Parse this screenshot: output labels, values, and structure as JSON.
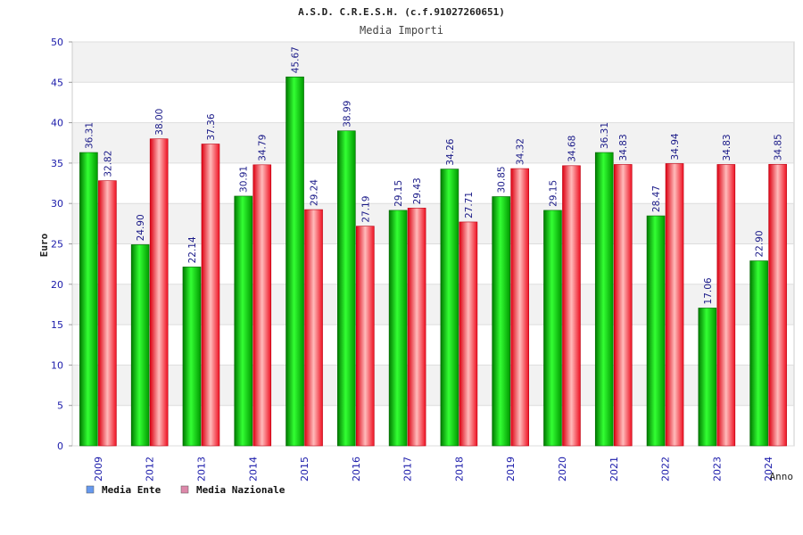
{
  "chart_data": {
    "type": "bar",
    "title": "A.S.D. C.R.E.S.H. (c.f.91027260651)",
    "subtitle": "Media Importi",
    "xlabel": "Anno",
    "ylabel": "Euro",
    "ylim": [
      0,
      50
    ],
    "yticks": [
      "0",
      "5",
      "10",
      "15",
      "20",
      "25",
      "30",
      "35",
      "40",
      "45",
      "50"
    ],
    "grid": true,
    "legend_position": "bottom-left",
    "categories": [
      "2009",
      "2012",
      "2013",
      "2014",
      "2015",
      "2016",
      "2017",
      "2018",
      "2019",
      "2020",
      "2021",
      "2022",
      "2023",
      "2024"
    ],
    "series": [
      {
        "name": "Media Ente",
        "color": "#00aa00",
        "legend_color": "#6699ee",
        "values": [
          36.31,
          24.9,
          22.14,
          30.91,
          45.67,
          38.99,
          29.15,
          34.26,
          30.85,
          29.15,
          36.31,
          28.47,
          17.06,
          22.9
        ],
        "labels": [
          "36.31",
          "24.90",
          "22.14",
          "30.91",
          "45.67",
          "38.99",
          "29.15",
          "34.26",
          "30.85",
          "29.15",
          "36.31",
          "28.47",
          "17.06",
          "22.90"
        ]
      },
      {
        "name": "Media Nazionale",
        "color": "#ee2233",
        "legend_color": "#dd88aa",
        "values": [
          32.82,
          38.0,
          37.36,
          34.79,
          29.24,
          27.19,
          29.43,
          27.71,
          34.32,
          34.68,
          34.83,
          34.94,
          34.83,
          34.85
        ],
        "labels": [
          "32.82",
          "38.00",
          "37.36",
          "34.79",
          "29.24",
          "27.19",
          "29.43",
          "27.71",
          "34.32",
          "34.68",
          "34.83",
          "34.94",
          "34.83",
          "34.85"
        ]
      }
    ]
  }
}
